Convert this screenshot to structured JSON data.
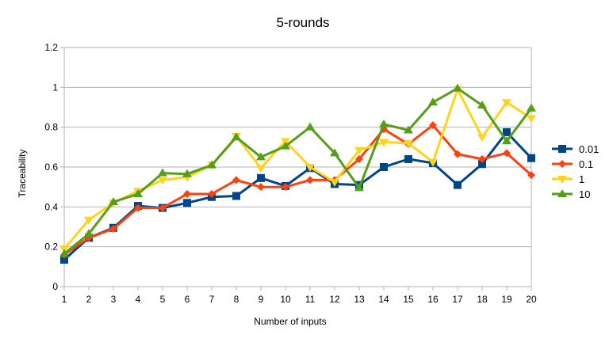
{
  "chart_data": {
    "type": "line",
    "title": "5-rounds",
    "xlabel": "Number of inputs",
    "ylabel": "Traceability",
    "x": [
      1,
      2,
      3,
      4,
      5,
      6,
      7,
      8,
      9,
      10,
      11,
      12,
      13,
      14,
      15,
      16,
      17,
      18,
      19,
      20
    ],
    "ylim": [
      0,
      1.2
    ],
    "yticks": [
      "0",
      "0.2",
      "0.4",
      "0.6",
      "0.8",
      "1",
      "1.2"
    ],
    "grid": "horizontal",
    "legend_position": "right",
    "series": [
      {
        "name": "0.01",
        "color": "#004586",
        "marker": "square",
        "values": [
          0.135,
          0.245,
          0.295,
          0.405,
          0.395,
          0.42,
          0.45,
          0.455,
          0.545,
          0.505,
          0.595,
          0.515,
          0.51,
          0.6,
          0.64,
          0.62,
          0.51,
          0.615,
          0.775,
          0.645
        ]
      },
      {
        "name": "0.1",
        "color": "#ff420e",
        "marker": "diamond",
        "values": [
          0.16,
          0.245,
          0.29,
          0.395,
          0.395,
          0.465,
          0.465,
          0.535,
          0.5,
          0.5,
          0.535,
          0.535,
          0.64,
          0.79,
          0.715,
          0.81,
          0.665,
          0.64,
          0.67,
          0.56
        ]
      },
      {
        "name": "1",
        "color": "#ffd320",
        "marker": "triangle-down",
        "values": [
          0.19,
          0.335,
          0.42,
          0.48,
          0.535,
          0.55,
          0.61,
          0.755,
          0.595,
          0.73,
          0.6,
          0.525,
          0.685,
          0.725,
          0.72,
          0.625,
          0.99,
          0.75,
          0.925,
          0.845
        ]
      },
      {
        "name": "10",
        "color": "#579d1c",
        "marker": "triangle-up",
        "values": [
          0.165,
          0.265,
          0.425,
          0.465,
          0.57,
          0.565,
          0.61,
          0.75,
          0.65,
          0.705,
          0.8,
          0.67,
          0.495,
          0.815,
          0.785,
          0.925,
          0.995,
          0.91,
          0.73,
          0.895
        ]
      }
    ]
  }
}
